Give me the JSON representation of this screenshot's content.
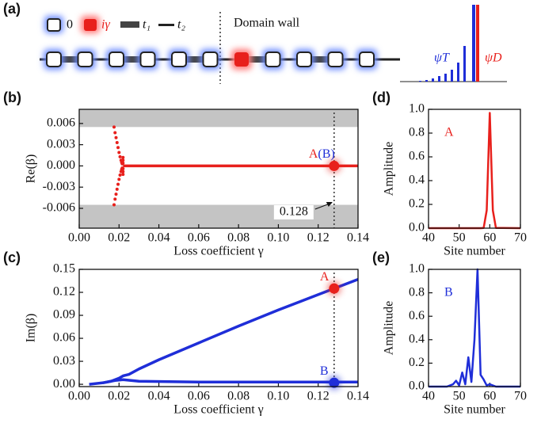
{
  "diagram": {
    "panel": "(a)",
    "legend": [
      "0",
      "iγ",
      "t₁",
      "t₂"
    ],
    "wall_label": "Domain wall",
    "psi_t": "ψT",
    "psi_d": "ψD"
  },
  "chart_data": [
    {
      "type": "scatter",
      "panel": "(b)",
      "xlabel": "Loss coefficient γ",
      "ylabel": "Re(β)",
      "xlim": [
        0,
        0.14
      ],
      "ylim": [
        -0.0088,
        0.008
      ],
      "xticks": [
        {
          "value": 0,
          "label": "0.00"
        },
        0.02,
        0.04,
        0.06,
        0.08,
        {
          "value": 0.1,
          "label": "0.10"
        },
        0.12,
        0.14
      ],
      "yticks": [
        0.006,
        0.003,
        {
          "value": 0,
          "label": "0.000"
        },
        -0.003,
        -0.006
      ],
      "shaded_regions": [
        [
          0.0055,
          0.008
        ],
        [
          -0.0088,
          -0.0055
        ]
      ],
      "vline": 0.128,
      "vline_label": "0.128",
      "series": [
        {
          "mode": "markers",
          "color": "#e8201c",
          "x": [
            0.0175,
            0.018,
            0.0185,
            0.019,
            0.0195,
            0.02,
            0.0205,
            0.021,
            0.0213,
            0.0216,
            0.022,
            0.022,
            0.022
          ],
          "values": [
            0.0055,
            0.0047,
            0.004,
            0.0033,
            0.0026,
            0.0019,
            0.0013,
            0.0008,
            0.0005,
            0.0003,
            0.0012,
            0.0008,
            0.0004
          ]
        },
        {
          "mode": "markers",
          "color": "#e8201c",
          "x": [
            0.0175,
            0.018,
            0.0185,
            0.019,
            0.0195,
            0.02,
            0.0205,
            0.021,
            0.0213,
            0.0216,
            0.022,
            0.022,
            0.022
          ],
          "values": [
            -0.0055,
            -0.0047,
            -0.004,
            -0.0033,
            -0.0026,
            -0.0019,
            -0.0013,
            -0.0008,
            -0.0005,
            -0.0003,
            -0.0012,
            -0.0008,
            -0.0004
          ]
        },
        {
          "mode": "line",
          "color": "#e8201c",
          "x": [
            0.022,
            0.14
          ],
          "values": [
            0,
            0
          ]
        }
      ],
      "highlights": [
        {
          "x": 0.128,
          "y": 0,
          "color": "#e8201c",
          "labels": [
            {
              "text": "A",
              "color": "#e8201c"
            },
            {
              "text": "(B)",
              "color": "#1f2ed8"
            }
          ]
        }
      ]
    },
    {
      "type": "line",
      "panel": "(c)",
      "xlabel": "Loss coefficient γ",
      "ylabel": "Im(β)",
      "xlim": [
        0,
        0.14
      ],
      "ylim": [
        -0.003,
        0.15
      ],
      "xticks": [
        {
          "value": 0,
          "label": "0.00"
        },
        0.02,
        0.04,
        0.06,
        0.08,
        {
          "value": 0.1,
          "label": "0.10"
        },
        0.12,
        0.14
      ],
      "yticks": [
        {
          "value": 0,
          "label": "0.00"
        },
        0.03,
        0.06,
        0.09,
        0.12,
        0.15
      ],
      "vline": 0.128,
      "series": [
        {
          "mode": "line",
          "color": "#1f2ed8",
          "x": [
            0.012,
            0.016,
            0.02,
            0.022,
            0.025,
            0.03,
            0.04,
            0.05,
            0.06,
            0.08,
            0.1,
            0.12,
            0.14
          ],
          "values": [
            0.002,
            0.004,
            0.008,
            0.011,
            0.013,
            0.02,
            0.032,
            0.043,
            0.054,
            0.076,
            0.097,
            0.117,
            0.137
          ]
        },
        {
          "mode": "line",
          "color": "#1f2ed8",
          "x": [
            0.005,
            0.012,
            0.018,
            0.022,
            0.03,
            0.06,
            0.1,
            0.14
          ],
          "values": [
            0,
            0.002,
            0.005,
            0.006,
            0.004,
            0.003,
            0.003,
            0.003
          ]
        }
      ],
      "highlights": [
        {
          "x": 0.128,
          "y": 0.125,
          "color": "#e8201c",
          "labels": [
            {
              "text": "A",
              "color": "#e8201c"
            }
          ]
        },
        {
          "x": 0.128,
          "y": 0.002,
          "color": "#1f2ed8",
          "labels": [
            {
              "text": "B",
              "color": "#1f2ed8"
            }
          ]
        }
      ]
    },
    {
      "type": "line",
      "panel": "(d)",
      "xlabel": "Site number",
      "ylabel": "Amplitude",
      "xlim": [
        40,
        70
      ],
      "ylim": [
        0,
        1.0
      ],
      "xticks": [
        40,
        50,
        60,
        70
      ],
      "yticks": [
        {
          "value": 0,
          "label": "0.0"
        },
        0.2,
        0.4,
        0.6,
        0.8,
        {
          "value": 1,
          "label": "1.0"
        }
      ],
      "annotation": {
        "text": "A",
        "color": "#e8201c"
      },
      "series": [
        {
          "mode": "line",
          "color": "#e8201c",
          "x": [
            40,
            57,
            58,
            59,
            60,
            61,
            62,
            70
          ],
          "values": [
            0,
            0,
            0.002,
            0.15,
            0.97,
            0.15,
            0.002,
            0
          ]
        }
      ]
    },
    {
      "type": "line",
      "panel": "(e)",
      "xlabel": "Site number",
      "ylabel": "Amplitude",
      "xlim": [
        40,
        70
      ],
      "ylim": [
        0,
        1.0
      ],
      "xticks": [
        40,
        50,
        60,
        70
      ],
      "yticks": [
        {
          "value": 0,
          "label": "0.0"
        },
        0.2,
        0.4,
        0.6,
        0.8,
        {
          "value": 1,
          "label": "1.0"
        }
      ],
      "annotation": {
        "text": "B",
        "color": "#1f2ed8"
      },
      "series": [
        {
          "mode": "line",
          "color": "#1f2ed8",
          "x": [
            40,
            46,
            48,
            49,
            50,
            51,
            52,
            53,
            54,
            55,
            56,
            57,
            58,
            59,
            60,
            62,
            70
          ],
          "values": [
            0,
            0,
            0.02,
            0.05,
            0.01,
            0.12,
            0.02,
            0.25,
            0.04,
            0.4,
            1.0,
            0.1,
            0.06,
            0.01,
            0.02,
            0,
            0
          ]
        }
      ]
    }
  ]
}
